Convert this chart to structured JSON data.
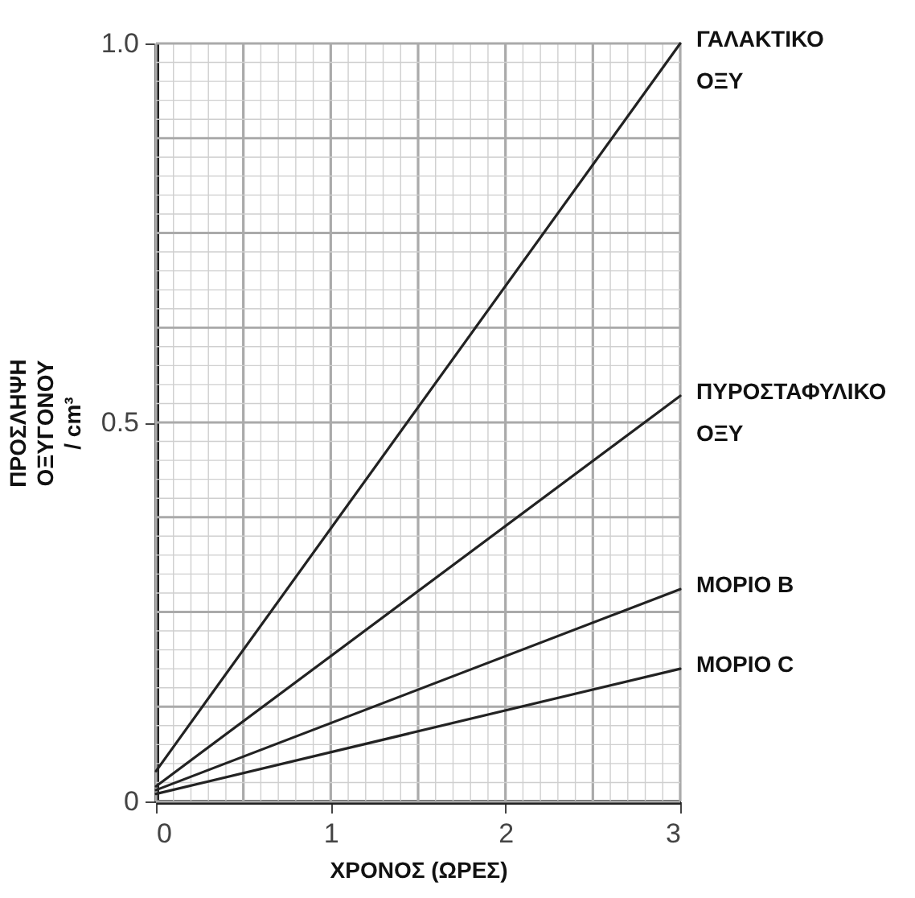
{
  "chart_data": {
    "type": "line",
    "xlabel": "ΧΡΟΝΟΣ (ΩΡΕΣ)",
    "ylabel": "ΠΡΟΣΛΗΨΗ ΟΞΥΓΟΝΟΥ / cm³",
    "x": [
      0,
      3
    ],
    "series": [
      {
        "name": "ΓΑΛΑΚΤΙΚΟ ΟΞΥ",
        "color": "#222222",
        "values": [
          0.04,
          1.0
        ]
      },
      {
        "name": "ΠΥΡΟΣΤΑΦΥΛΙΚΟ ΟΞΥ",
        "color": "#222222",
        "values": [
          0.02,
          0.535
        ]
      },
      {
        "name": "ΜΟΡΙΟ B",
        "color": "#222222",
        "values": [
          0.015,
          0.28
        ]
      },
      {
        "name": "ΜΟΡΙΟ C",
        "color": "#222222",
        "values": [
          0.01,
          0.175
        ]
      }
    ],
    "xlim": [
      0,
      3
    ],
    "xticks": [
      0,
      1,
      2,
      3
    ],
    "ylim": [
      0,
      1
    ],
    "yticks": [
      0,
      0.5,
      {
        "value": 1,
        "label": "1.0"
      }
    ],
    "grid": true,
    "marker": "none",
    "line_style": "solid"
  }
}
